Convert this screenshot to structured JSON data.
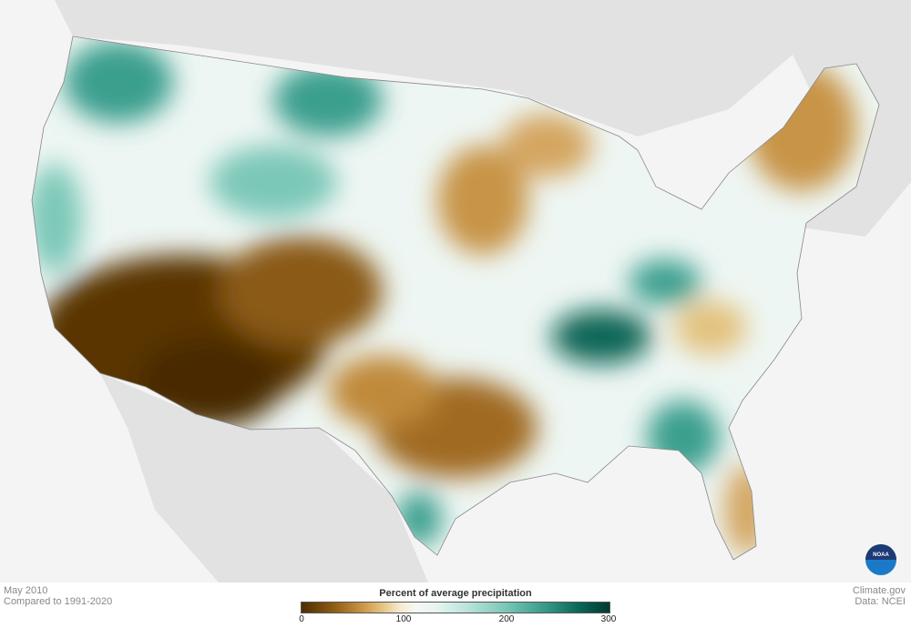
{
  "map": {
    "subject": "Percent of average precipitation, contiguous United States",
    "colors": {
      "background": "#f4f4f4",
      "surrounding_land": "#e2e2e2",
      "dry": "#5a3500",
      "normal": "#f7f7f4",
      "wet": "#00382e"
    }
  },
  "footer": {
    "date": "May 2010",
    "baseline": "Compared to 1991-2020",
    "credit": "Climate.gov",
    "source": "Data: NCEI",
    "logo_text": "NOAA"
  },
  "legend": {
    "title": "Percent of average precipitation",
    "ticks": [
      "0",
      "100",
      "200",
      "300"
    ],
    "range": [
      0,
      300
    ]
  }
}
